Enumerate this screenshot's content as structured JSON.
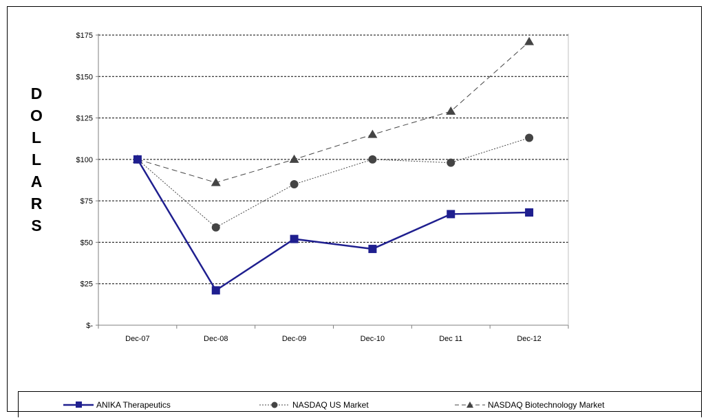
{
  "chart_data": {
    "type": "line",
    "categories": [
      "Dec-07",
      "Dec-08",
      "Dec-09",
      "Dec-10",
      "Dec 11",
      "Dec-12"
    ],
    "ylabel": "DOLLARS",
    "ylim": [
      0,
      175
    ],
    "yticks": [
      0,
      25,
      50,
      75,
      100,
      125,
      150,
      175
    ],
    "ytick_labels": [
      "$-",
      "$25",
      "$50",
      "$75",
      "$100",
      "$125",
      "$150",
      "$175"
    ],
    "grid": "horizontal dashed",
    "legend_position": "bottom",
    "series": [
      {
        "name": "ANIKA Therapeutics",
        "values": [
          100,
          21,
          52,
          46,
          67,
          68
        ],
        "color": "#1f1f8f",
        "marker": "square",
        "line": "solid"
      },
      {
        "name": "NASDAQ US Market",
        "values": [
          100,
          59,
          85,
          100,
          98,
          113
        ],
        "color": "#444444",
        "marker": "circle",
        "line": "dotted"
      },
      {
        "name": "NASDAQ Biotechnology Market",
        "values": [
          100,
          86,
          100,
          115,
          129,
          171
        ],
        "color": "#444444",
        "marker": "triangle",
        "line": "dashed"
      }
    ]
  }
}
